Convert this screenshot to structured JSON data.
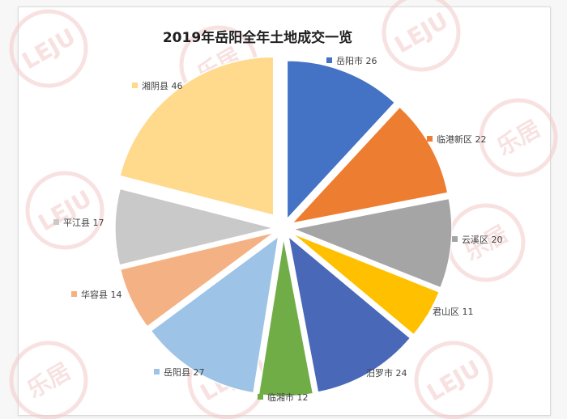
{
  "chart_data": {
    "type": "pie",
    "title": "2019年岳阳全年土地成交一览",
    "exploded": true,
    "slices": [
      {
        "label": "岳阳市",
        "value": 26,
        "color": "#4472c4"
      },
      {
        "label": "临港新区",
        "value": 22,
        "color": "#ed7d31"
      },
      {
        "label": "云溪区",
        "value": 20,
        "color": "#a5a5a5"
      },
      {
        "label": "君山区",
        "value": 11,
        "color": "#ffc000"
      },
      {
        "label": "汨罗市",
        "value": 24,
        "color": "#4a68b8"
      },
      {
        "label": "临湘市",
        "value": 12,
        "color": "#70ad47"
      },
      {
        "label": "岳阳县",
        "value": 27,
        "color": "#9dc3e6"
      },
      {
        "label": "华容县",
        "value": 14,
        "color": "#f4b183"
      },
      {
        "label": "平江县",
        "value": 17,
        "color": "#c9c9c9"
      },
      {
        "label": "湘阴县",
        "value": 46,
        "color": "#ffd98c"
      }
    ]
  },
  "watermark": {
    "brand_text": "乐居",
    "logo_text": "LEJU",
    "color": "#f4c9c9"
  }
}
